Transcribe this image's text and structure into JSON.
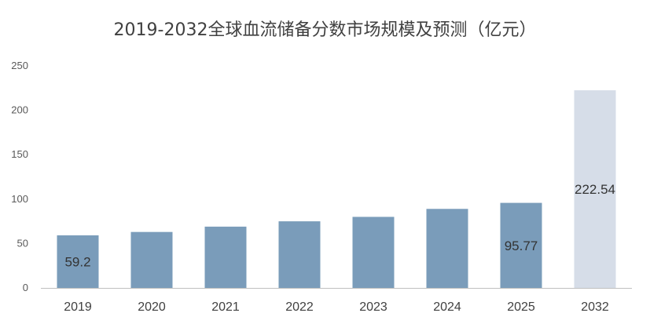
{
  "chart_data": {
    "type": "bar",
    "title": "2019-2032全球血流储备分数市场规模及预测（亿元）",
    "categories": [
      "2019",
      "2020",
      "2021",
      "2022",
      "2023",
      "2024",
      "2025",
      "2032"
    ],
    "values": [
      59.2,
      63,
      69,
      75,
      80,
      89,
      95.77,
      222.54
    ],
    "data_labels": [
      "59.2",
      "",
      "",
      "",
      "",
      "",
      "95.77",
      "222.54"
    ],
    "ylim": [
      0,
      250
    ],
    "yticks": [
      0,
      50,
      100,
      150,
      200,
      250
    ],
    "grid": false,
    "legend": "none",
    "colors": {
      "actual": "#7a9cba",
      "forecast": "#d6dde8",
      "axis": "#bfbfbf"
    }
  }
}
